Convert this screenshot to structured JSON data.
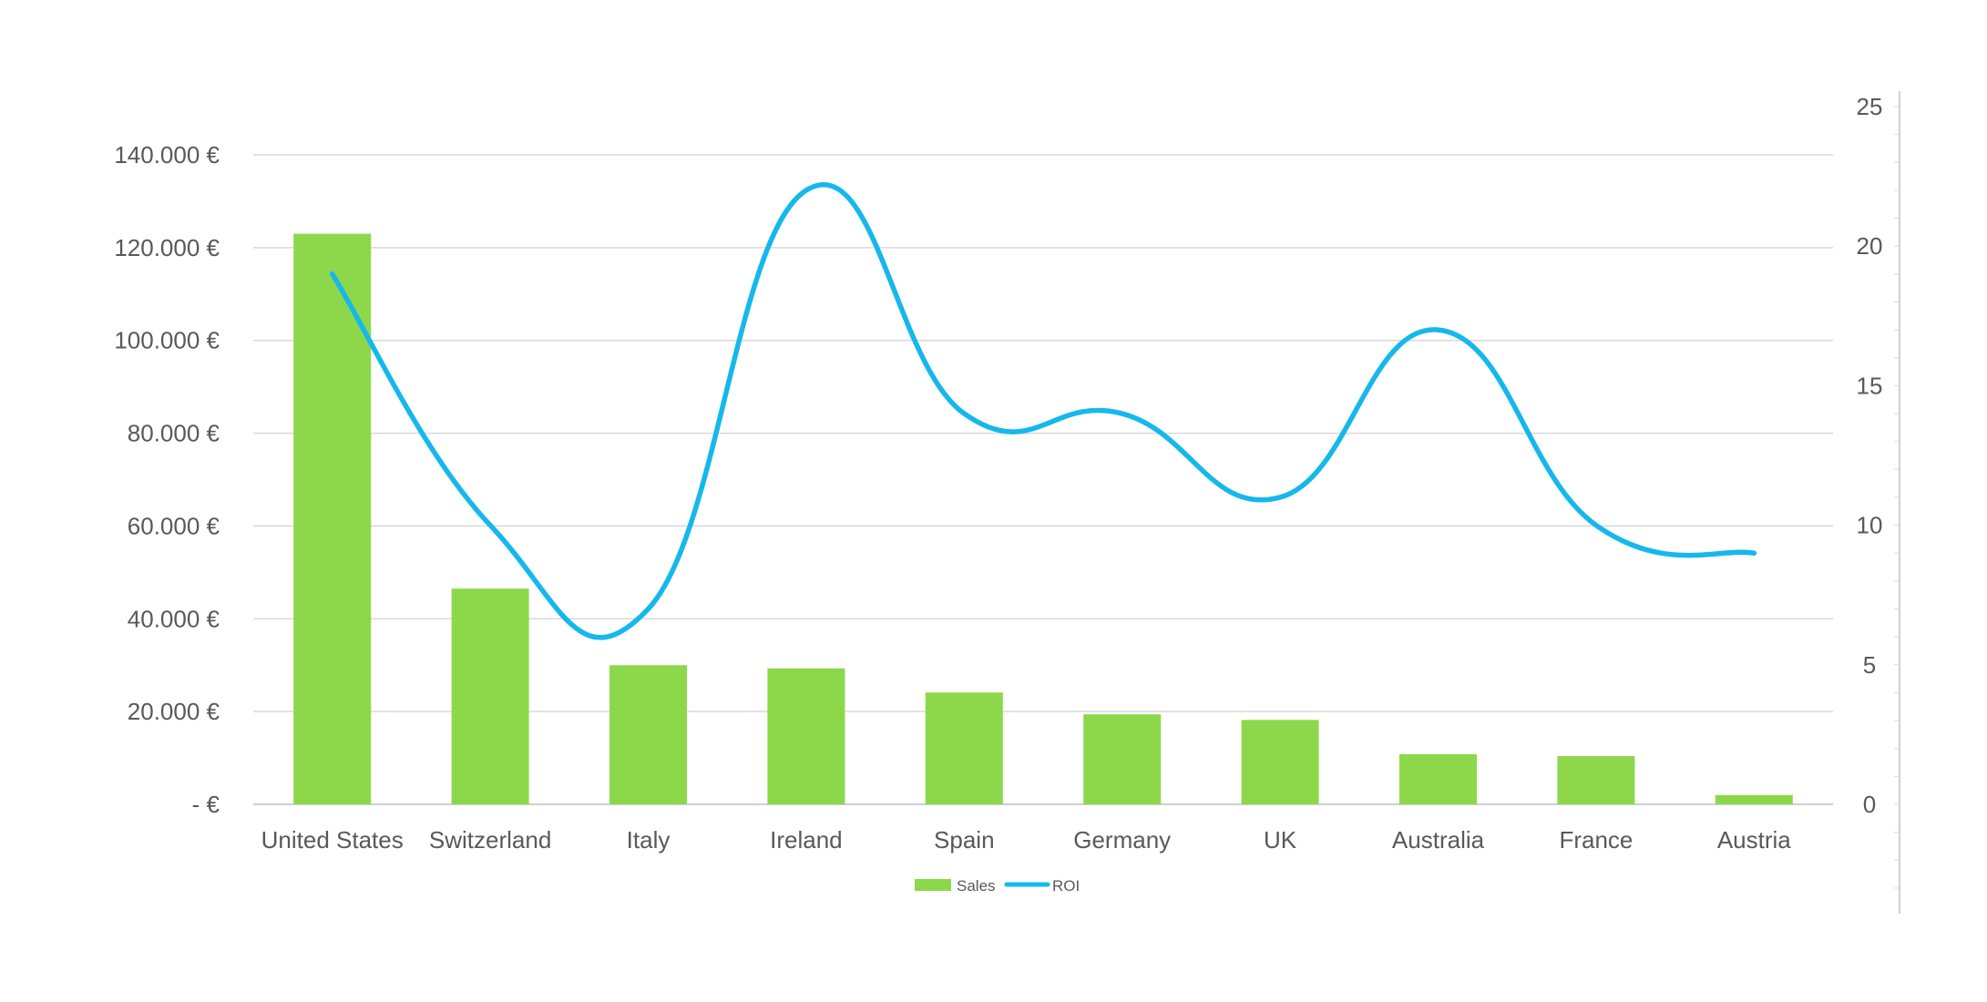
{
  "chart_data": {
    "type": "bar",
    "categories": [
      "United States",
      "Switzerland",
      "Italy",
      "Ireland",
      "Spain",
      "Germany",
      "UK",
      "Australia",
      "France",
      "Austria"
    ],
    "series": [
      {
        "name": "Sales",
        "type": "bar",
        "axis": "left",
        "color": "#8cd84a",
        "values": [
          123000,
          46500,
          30000,
          29300,
          24100,
          19400,
          18200,
          10800,
          10400,
          2000
        ]
      },
      {
        "name": "ROI",
        "type": "line",
        "smooth": true,
        "axis": "right",
        "color": "#16b8ec",
        "values": [
          19,
          10,
          7,
          22,
          14,
          14,
          11,
          17,
          10,
          9
        ]
      }
    ],
    "y_left": {
      "ylim": [
        0,
        140000
      ],
      "ticks": [
        0,
        20000,
        40000,
        60000,
        80000,
        100000,
        120000,
        140000
      ],
      "tick_labels": [
        "-  €",
        "20.000 €",
        "40.000 €",
        "60.000 €",
        "80.000 €",
        "100.000 €",
        "120.000 €",
        "140.000 €"
      ]
    },
    "y_right": {
      "ylim": [
        0,
        25
      ],
      "ticks": [
        0,
        5,
        10,
        15,
        20,
        25
      ],
      "tick_labels": [
        "0",
        "5",
        "10",
        "15",
        "20",
        "25"
      ]
    },
    "grid": true,
    "legend": {
      "position": "bottom",
      "entries": [
        "Sales",
        "ROI"
      ]
    }
  }
}
